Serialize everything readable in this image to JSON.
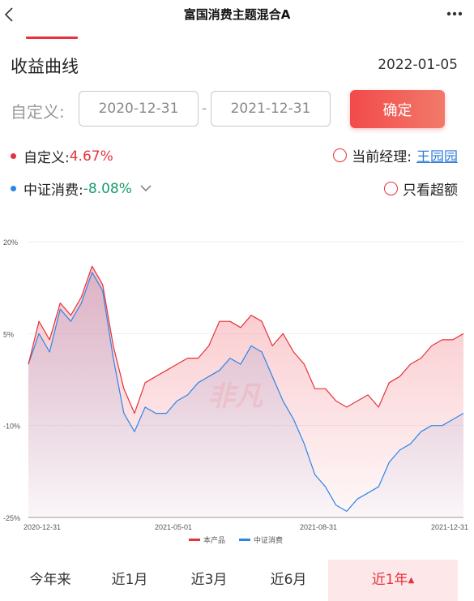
{
  "nav": {
    "title": "富国消费主题混合A"
  },
  "header": {
    "title": "收益曲线",
    "date": "2022-01-05"
  },
  "custom_range": {
    "label": "自定义:",
    "start": "2020-12-31",
    "end": "2021-12-31",
    "separator": "-",
    "confirm_label": "确定"
  },
  "stats": {
    "custom_label": "自定义:",
    "custom_value": "4.67%",
    "index_label": "中证消费:",
    "index_value": "-8.08%",
    "manager_label": "当前经理:",
    "manager_name": "王园园",
    "excess_label": "只看超额"
  },
  "colors": {
    "accent": "#e5323c",
    "product_line": "#e7323a",
    "index_line": "#2c86e8",
    "positive": "#e5323c",
    "negative": "#1a9d6a"
  },
  "chart_data": {
    "type": "area",
    "y_ticks": [
      "20%",
      "5%",
      "-10%",
      "-25%"
    ],
    "ylim": [
      -25,
      20
    ],
    "x_ticks": [
      "2020-12-31",
      "2021-05-01",
      "2021-08-31",
      "2021-12-31"
    ],
    "x": [
      "2020-12-31",
      "2021-01-08",
      "2021-01-15",
      "2021-01-22",
      "2021-02-01",
      "2021-02-10",
      "2021-02-18",
      "2021-02-25",
      "2021-03-05",
      "2021-03-12",
      "2021-03-19",
      "2021-03-26",
      "2021-04-02",
      "2021-04-09",
      "2021-04-16",
      "2021-04-23",
      "2021-04-30",
      "2021-05-10",
      "2021-05-20",
      "2021-05-31",
      "2021-06-10",
      "2021-06-21",
      "2021-06-30",
      "2021-07-09",
      "2021-07-16",
      "2021-07-23",
      "2021-07-30",
      "2021-08-06",
      "2021-08-13",
      "2021-08-20",
      "2021-08-27",
      "2021-09-03",
      "2021-09-10",
      "2021-09-17",
      "2021-09-30",
      "2021-10-15",
      "2021-10-29",
      "2021-11-12",
      "2021-11-26",
      "2021-12-10",
      "2021-12-24",
      "2021-12-31"
    ],
    "series": [
      {
        "name": "本产品",
        "values": [
          0,
          7,
          4,
          10,
          8,
          11,
          16,
          13,
          3,
          -4,
          -8,
          -3,
          -2,
          -1,
          0,
          1,
          1,
          3,
          7,
          7,
          6,
          8,
          7,
          3,
          5,
          2,
          0,
          -4,
          -4,
          -6,
          -7,
          -6,
          -5,
          -7,
          -3,
          -2,
          0,
          1,
          3,
          4,
          4,
          5
        ]
      },
      {
        "name": "中证消费",
        "values": [
          0,
          5,
          2,
          9,
          7,
          10,
          15,
          12,
          1,
          -8,
          -11,
          -7,
          -8,
          -8,
          -6,
          -5,
          -3,
          -2,
          -1,
          1,
          0,
          3,
          2,
          -2,
          -6,
          -9,
          -13,
          -18,
          -20,
          -23,
          -24,
          -22,
          -21,
          -20,
          -16,
          -14,
          -13,
          -11,
          -10,
          -10,
          -9,
          -8
        ]
      }
    ],
    "legend": [
      "本产品",
      "中证消费"
    ],
    "legend_position": "bottom",
    "watermark": "非凡"
  },
  "range_tabs": [
    {
      "label": "今年来"
    },
    {
      "label": "近1月"
    },
    {
      "label": "近3月"
    },
    {
      "label": "近6月"
    },
    {
      "label": "近1年"
    }
  ]
}
